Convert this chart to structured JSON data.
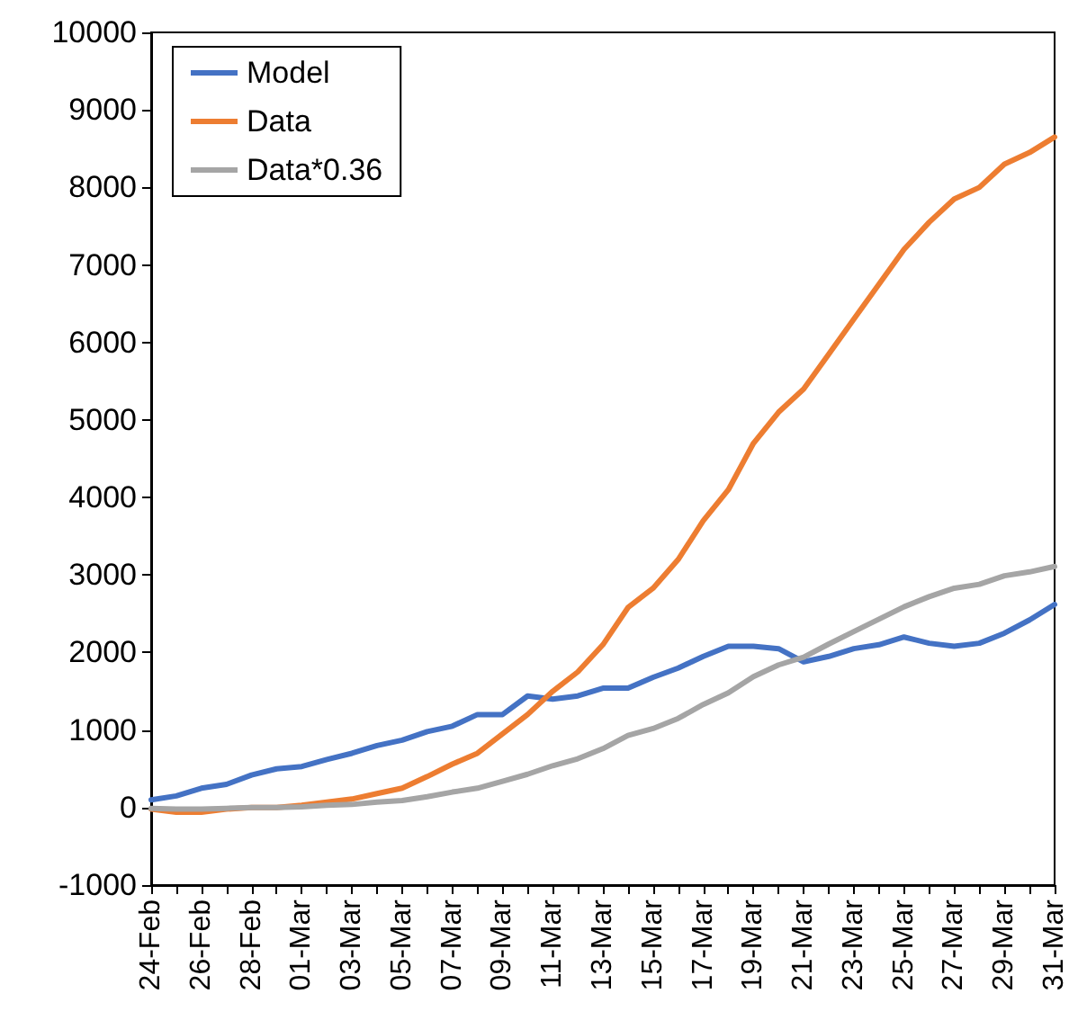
{
  "chart_data": {
    "type": "line",
    "categories": [
      "24-Feb",
      null,
      "26-Feb",
      null,
      "28-Feb",
      null,
      "01-Mar",
      null,
      "03-Mar",
      null,
      "05-Mar",
      null,
      "07-Mar",
      null,
      "09-Mar",
      null,
      "11-Mar",
      null,
      "13-Mar",
      null,
      "15-Mar",
      null,
      "17-Mar",
      null,
      "19-Mar",
      null,
      "21-Mar",
      null,
      "23-Mar",
      null,
      "25-Mar",
      null,
      "27-Mar",
      null,
      "29-Mar",
      null,
      "31-Mar"
    ],
    "series": [
      {
        "name": "Model",
        "color": "#4472c4",
        "values": [
          100,
          150,
          250,
          300,
          420,
          500,
          530,
          620,
          700,
          800,
          870,
          980,
          1050,
          1200,
          1200,
          1440,
          1400,
          1440,
          1540,
          1540,
          1680,
          1800,
          1950,
          2080,
          2080,
          2050,
          1880,
          1950,
          2050,
          2100,
          2200,
          2120,
          2080,
          2120,
          2250,
          2420,
          2620
        ]
      },
      {
        "name": "Data",
        "color": "#ed7d31",
        "values": [
          -20,
          -60,
          -60,
          -20,
          0,
          0,
          30,
          70,
          110,
          180,
          250,
          400,
          560,
          700,
          950,
          1200,
          1500,
          1750,
          2100,
          2580,
          2830,
          3200,
          3700,
          4100,
          4700,
          5100,
          5400,
          5850,
          6300,
          6750,
          7200,
          7550,
          7850,
          8000,
          8300,
          8450,
          8650
        ]
      },
      {
        "name": "Data*0.36",
        "color": "#a5a5a5",
        "values": [
          -10,
          -20,
          -20,
          -10,
          0,
          0,
          10,
          30,
          40,
          70,
          90,
          140,
          200,
          250,
          340,
          430,
          540,
          630,
          760,
          930,
          1020,
          1150,
          1330,
          1480,
          1690,
          1840,
          1940,
          2110,
          2270,
          2430,
          2590,
          2720,
          2830,
          2880,
          2990,
          3040,
          3110
        ]
      }
    ],
    "ylim": [
      -1000,
      10000
    ],
    "yticks": [
      -1000,
      0,
      1000,
      2000,
      3000,
      4000,
      5000,
      6000,
      7000,
      8000,
      9000,
      10000
    ],
    "legend": "top left",
    "marker": "none",
    "line_style": "solid"
  }
}
